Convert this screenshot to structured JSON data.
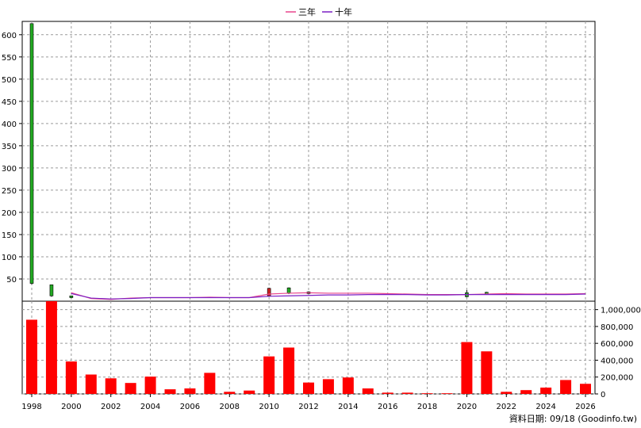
{
  "legend": {
    "items": [
      {
        "label": "三年",
        "color": "#e8468c"
      },
      {
        "label": "十年",
        "color": "#7a1fc4"
      }
    ]
  },
  "footer_note": "資料日期: 09/18  (Goodinfo.tw)",
  "chart_data": [
    {
      "type": "candlestick",
      "xlabel": "",
      "ylabel": "",
      "ylim": [
        0,
        630
      ],
      "yticks": [
        50,
        100,
        150,
        200,
        250,
        300,
        350,
        400,
        450,
        500,
        550,
        600
      ],
      "grid": true,
      "legend_position": "top-center",
      "candles": [
        {
          "year": 1998.0,
          "open": 40,
          "close": 625,
          "high": 625,
          "low": 38,
          "color": "#22aa22"
        },
        {
          "year": 1999.0,
          "open": 12,
          "close": 37,
          "high": 37,
          "low": 10,
          "color": "#22aa22"
        },
        {
          "year": 2000.0,
          "open": 8,
          "close": 12,
          "high": 12,
          "low": 7,
          "color": "#22aa22"
        },
        {
          "year": 2010.0,
          "open": 12,
          "close": 29,
          "high": 30,
          "low": 10,
          "color": "#cc2222"
        },
        {
          "year": 2011.0,
          "open": 18,
          "close": 30,
          "high": 31,
          "low": 16,
          "color": "#22aa22"
        },
        {
          "year": 2012.0,
          "open": 17,
          "close": 21,
          "high": 22,
          "low": 16,
          "color": "#22aa22"
        },
        {
          "year": 2020.0,
          "open": 10,
          "close": 19,
          "high": 25,
          "low": 9,
          "color": "#22aa22"
        },
        {
          "year": 2021.0,
          "open": 16,
          "close": 20,
          "high": 21,
          "low": 15,
          "color": "#22aa22"
        }
      ],
      "series": [
        {
          "name": "三年",
          "color": "#e8468c",
          "x": [
            2000,
            2001,
            2002,
            2003,
            2004,
            2005,
            2006,
            2007,
            2008,
            2009,
            2010,
            2011,
            2012,
            2013,
            2014,
            2015,
            2016,
            2017,
            2018,
            2019,
            2020,
            2021,
            2022,
            2023,
            2024,
            2025,
            2026
          ],
          "y": [
            19,
            6,
            4,
            7,
            8,
            8,
            8,
            9,
            8,
            8,
            16,
            18,
            19,
            18,
            18,
            18,
            17,
            16,
            15,
            15,
            15,
            16,
            17,
            16,
            16,
            16,
            17
          ]
        },
        {
          "name": "十年",
          "color": "#7a1fc4",
          "x": [
            2000,
            2001,
            2002,
            2003,
            2004,
            2005,
            2006,
            2007,
            2008,
            2009,
            2010,
            2011,
            2012,
            2013,
            2014,
            2015,
            2016,
            2017,
            2018,
            2019,
            2020,
            2021,
            2022,
            2023,
            2024,
            2025,
            2026
          ],
          "y": [
            17,
            7,
            5,
            6,
            8,
            8,
            8,
            8,
            8,
            8,
            11,
            12,
            13,
            14,
            14,
            15,
            15,
            15,
            14,
            14,
            15,
            15,
            15,
            15,
            15,
            15,
            16
          ]
        }
      ]
    },
    {
      "type": "bar",
      "ylim": [
        0,
        1100000
      ],
      "yticks": [
        "0",
        "200,000",
        "400,000",
        "600,000",
        "800,000",
        "1,000,000"
      ],
      "ytick_values": [
        0,
        200000,
        400000,
        600000,
        800000,
        1000000
      ],
      "grid": true,
      "bar_color": "#ff0000",
      "x": [
        1998,
        1999,
        2000,
        2001,
        2002,
        2003,
        2004,
        2005,
        2006,
        2007,
        2008,
        2009,
        2010,
        2011,
        2012,
        2013,
        2014,
        2015,
        2016,
        2017,
        2018,
        2019,
        2020,
        2021,
        2022,
        2023,
        2024,
        2025,
        2026
      ],
      "values": [
        880000,
        1120000,
        385000,
        230000,
        185000,
        130000,
        205000,
        55000,
        65000,
        250000,
        25000,
        40000,
        445000,
        550000,
        135000,
        175000,
        195000,
        65000,
        15000,
        15000,
        8000,
        8000,
        615000,
        505000,
        25000,
        45000,
        75000,
        165000,
        120000
      ]
    }
  ],
  "x_axis": {
    "tick_labels": [
      "1998",
      "2000",
      "2002",
      "2004",
      "2006",
      "2008",
      "2010",
      "2012",
      "2014",
      "2016",
      "2018",
      "2020",
      "2022",
      "2024",
      "2026"
    ]
  }
}
